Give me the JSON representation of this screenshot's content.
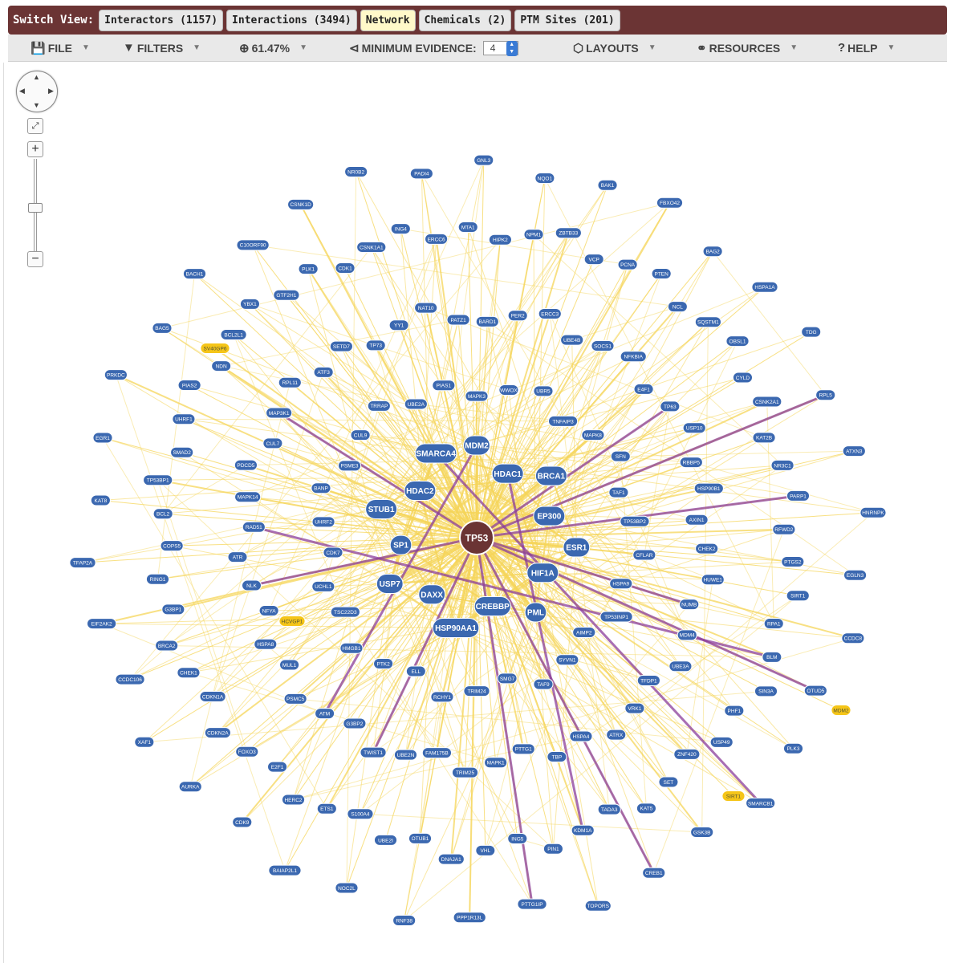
{
  "switch_view": {
    "label": "Switch View:",
    "tabs": [
      {
        "label": "Interactors (1157)",
        "active": false
      },
      {
        "label": "Interactions (3494)",
        "active": false
      },
      {
        "label": "Network",
        "active": true
      },
      {
        "label": "Chemicals (2)",
        "active": false
      },
      {
        "label": "PTM Sites (201)",
        "active": false
      }
    ]
  },
  "toolbar": {
    "file": "FILE",
    "filters": "FILTERS",
    "zoom": "61.47%",
    "min_evidence_label": "MINIMUM EVIDENCE:",
    "min_evidence_value": "4",
    "layouts": "LAYOUTS",
    "resources": "RESOURCES",
    "help": "HELP"
  },
  "colors": {
    "header": "#6b3434",
    "node": "#3b68b0",
    "hub": "#6b3434",
    "chemical": "#f5c518",
    "edge": "#f5d55a",
    "edge_ptm": "#8b3e9a"
  },
  "network": {
    "hub": "TP53",
    "major": [
      "MDM2",
      "HDAC1",
      "BRCA1",
      "EP300",
      "ESR1",
      "HIF1A",
      "PML",
      "CREBBP",
      "HSP90AA1",
      "DAXX",
      "USP7",
      "SP1",
      "STUB1",
      "HDAC2",
      "SMARCA4"
    ],
    "chemicals": [
      "SV40GP6",
      "HCVGP1",
      "MDM2",
      "SIRT1"
    ],
    "nodes": [
      "MAPK3",
      "WWOX",
      "UBR5",
      "TNFAIP3",
      "MAPK8",
      "SFN",
      "TAF1",
      "TP53BP2",
      "CFLAR",
      "HSPA9",
      "TP53INP1",
      "AIMP2",
      "SYVN1",
      "TAF9",
      "SMG7",
      "TRIM24",
      "RCHY1",
      "ELL",
      "PTK2",
      "HMGB1",
      "TSC22D3",
      "UCHL1",
      "CDK7",
      "UHRF2",
      "BANP",
      "PSME3",
      "CUL9",
      "TRRAP",
      "UBE2A",
      "PIAS1",
      "BARD1",
      "PER2",
      "ERCC3",
      "UBE4B",
      "SOCS1",
      "NFKBIA",
      "E4F1",
      "TP63",
      "USP10",
      "RBBP5",
      "HSP90B1",
      "AXIN1",
      "CHEK2",
      "HUWE1",
      "NUMB",
      "MDM4",
      "UBE3A",
      "TFDP1",
      "VRK1",
      "ATRX",
      "HSPA4",
      "TBP",
      "PTTG1",
      "MAPK1",
      "TRIM25",
      "FAM175B",
      "UBE2N",
      "TWIST1",
      "G3BP2",
      "ATM",
      "PSMC5",
      "MUL1",
      "HSPA8",
      "NFYA",
      "NLK",
      "ATR",
      "RAD51",
      "MAPK14",
      "PDCD5",
      "CUL7",
      "MAP3K1",
      "RPL11",
      "ATF3",
      "SETD7",
      "TP73",
      "YY1",
      "NAT10",
      "PATZ1",
      "HIPK2",
      "NPM1",
      "ZBTB33",
      "VCP",
      "PCNA",
      "PTEN",
      "NCL",
      "SQSTM1",
      "OBSL1",
      "CYLD",
      "CSNK2A1",
      "KAT2B",
      "NR3C1",
      "PARP1",
      "RFWD2",
      "PTGS2",
      "SIRT1",
      "RPA1",
      "BLM",
      "SIN3A",
      "PHF1",
      "USP49",
      "ZNF420",
      "SET",
      "KAT5",
      "TADA3",
      "KDM1A",
      "PIN1",
      "ING5",
      "VHL",
      "DNAJA1",
      "OTUB1",
      "UBE2I",
      "S100A4",
      "ETS1",
      "HERC2",
      "E2F1",
      "FOXO3",
      "CDKN2A",
      "CDKN1A",
      "CHEK1",
      "BRCA2",
      "G3BP1",
      "RING1",
      "COPS5",
      "BCL2",
      "TP53BP1",
      "SMAD2",
      "UHRF1",
      "PIAS2",
      "NDN",
      "BCL2L1",
      "YBX1",
      "GTF2H1",
      "PLK1",
      "CDK1",
      "CSNK1A1",
      "ING4",
      "ERCC6",
      "MTA1",
      "NQO1",
      "BAK1",
      "FBXO42",
      "BAG2",
      "HSPA1A",
      "TDG",
      "RPL5",
      "ATXN3",
      "HNRNPK",
      "EGLN3",
      "CCDC8",
      "OTUD5",
      "PLK3",
      "SMARCB1",
      "GSK3B",
      "CREB1",
      "TOPORS",
      "PTTG1IP",
      "PPP1R13L",
      "RNF38",
      "NOC2L",
      "BAIAP2L1",
      "CDK9",
      "AURKA",
      "XAF1",
      "CCDC106",
      "EIF2AK2",
      "TFAP2A",
      "KAT8",
      "EGR1",
      "PRKDC",
      "BAG5",
      "BACH1",
      "C10ORF90",
      "CSNK1D",
      "NR0B2",
      "PADI4",
      "GNL3"
    ]
  }
}
